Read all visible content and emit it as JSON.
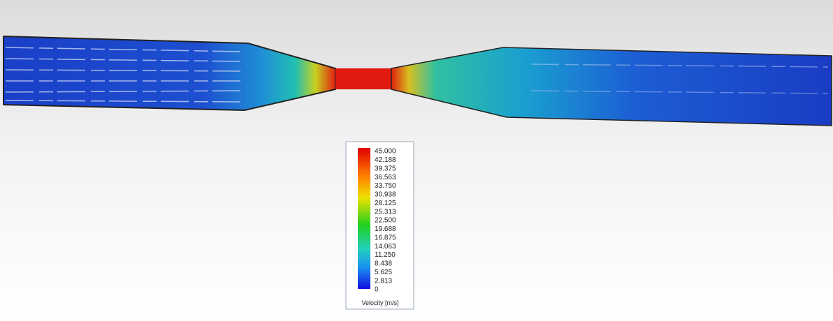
{
  "legend": {
    "ticks": [
      "45.000",
      "42.188",
      "39.375",
      "36.563",
      "33.750",
      "30.938",
      "28.125",
      "25.313",
      "22.500",
      "19.688",
      "16.875",
      "14.063",
      "11.250",
      "8.438",
      "5.625",
      "2.813",
      "0"
    ],
    "label": "Velocity [m/s]"
  }
}
